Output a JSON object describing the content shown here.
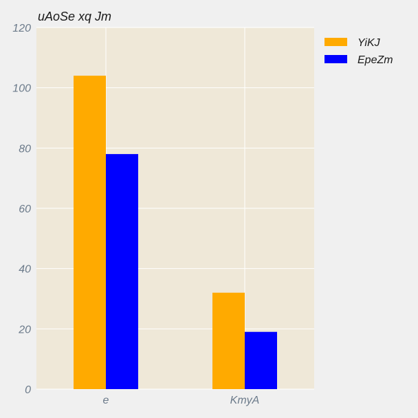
{
  "chart_data": {
    "type": "bar",
    "title": "uAoSe xq Jm",
    "xlabel": "",
    "ylabel": "",
    "categories": [
      "e",
      "KmyA"
    ],
    "series": [
      {
        "name": "YiKJ",
        "values": [
          104,
          32
        ],
        "color": "#ffaa00"
      },
      {
        "name": "EpeZm",
        "values": [
          78,
          19
        ],
        "color": "#0000ff"
      }
    ],
    "ylim": [
      0,
      120
    ],
    "yticks": [
      0,
      20,
      40,
      60,
      80,
      100,
      120
    ],
    "grid": true,
    "legend_position": "top-right outside",
    "plot_background": "#efe8d8",
    "figure_background": "#f0f0f0"
  }
}
